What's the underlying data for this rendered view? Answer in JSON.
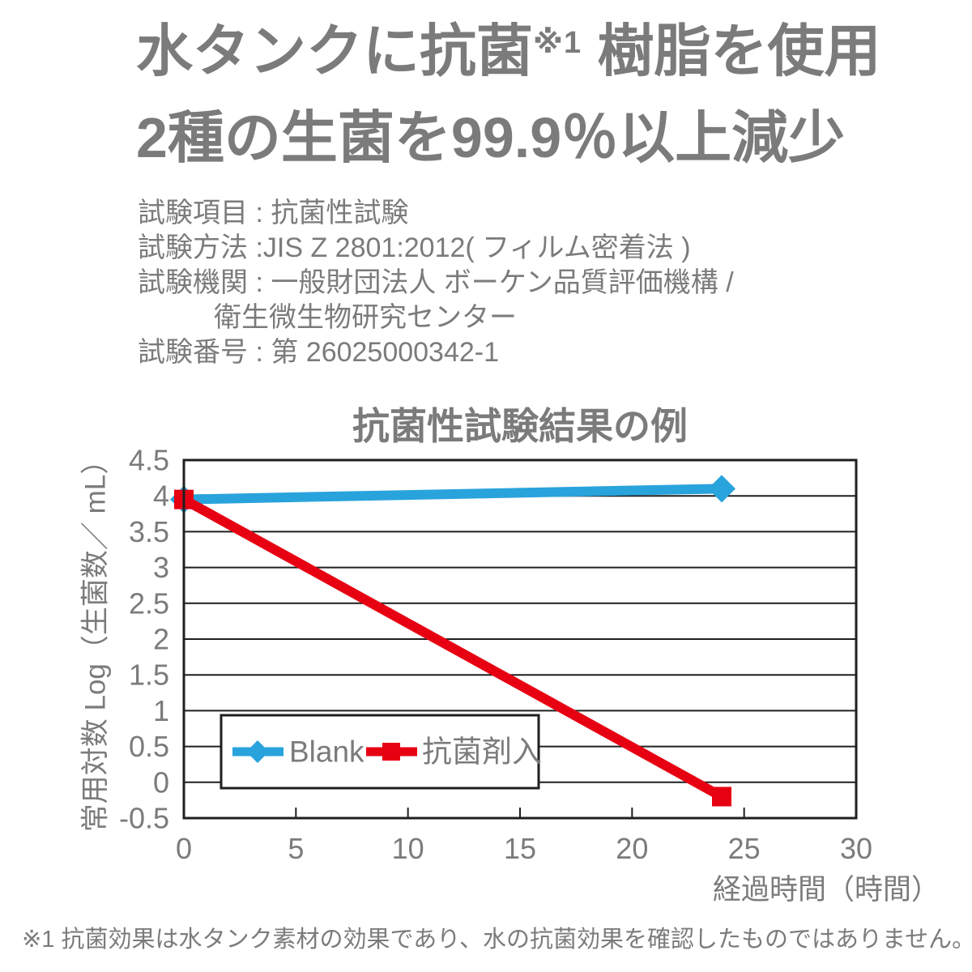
{
  "colors": {
    "text_gray": "#7b7b7b",
    "line_black": "#1f1f1f",
    "blank_blue": "#29a3dc",
    "agent_red": "#e60012",
    "background": "#ffffff"
  },
  "heading": {
    "line1_main": "水タンクに抗菌",
    "line1_note_ref": "※1",
    "line1_rest": " 樹脂を使用",
    "line2": "2種の生菌を99.9％以上減少"
  },
  "test_info": {
    "item": "試験項目 : 抗菌性試験",
    "method": "試験方法 :JIS Z 2801:2012( フィルム密着法 )",
    "organization": "試験機関 : 一般財団法人 ボーケン品質評価機構 /",
    "organization2": "衛生微生物研究センター",
    "number": "試験番号 : 第 26025000342-1"
  },
  "chart_data": {
    "type": "line",
    "title": "抗菌性試験結果の例",
    "xlabel": "経過時間（時間）",
    "ylabel": "常用対数 Log（生菌数／ mL）",
    "xlim": [
      0,
      30
    ],
    "ylim": [
      -0.5,
      4.5
    ],
    "xticks": [
      0,
      5,
      10,
      15,
      20,
      25,
      30
    ],
    "yticks": [
      4.5,
      4,
      3.5,
      3,
      2.5,
      2,
      1.5,
      1,
      0.5,
      0,
      -0.5
    ],
    "grid": "horizontal",
    "legend_position": "inside-bottom-left",
    "series": [
      {
        "name": "Blank",
        "color": "#29a3dc",
        "marker": "diamond",
        "x": [
          0,
          24
        ],
        "y": [
          3.95,
          4.1
        ]
      },
      {
        "name": "抗菌剤入",
        "color": "#e60012",
        "marker": "square",
        "x": [
          0,
          24
        ],
        "y": [
          3.95,
          -0.2
        ]
      }
    ]
  },
  "footnote": "※1 抗菌効果は水タンク素材の効果であり、水の抗菌効果を確認したものではありません。"
}
